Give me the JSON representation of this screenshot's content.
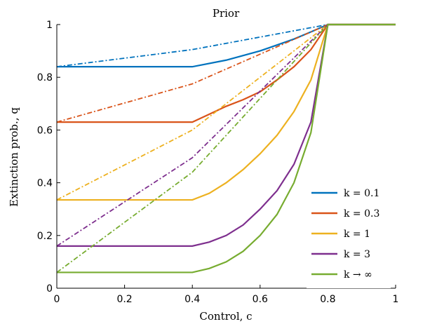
{
  "chart_data": {
    "type": "line",
    "title": "Prior",
    "xlabel": "Control, c",
    "ylabel": "Extinction prob., q",
    "xlim": [
      0,
      1
    ],
    "ylim": [
      0,
      1
    ],
    "xticks": [
      "0",
      "0.2",
      "0.4",
      "0.6",
      "0.8",
      "1"
    ],
    "yticks": [
      "0",
      "0.2",
      "0.4",
      "0.6",
      "0.8",
      "1"
    ],
    "grid": false,
    "legend_position": "bottom-right",
    "line_styles": {
      "solid": "solid",
      "dashdot": "dash-dot"
    },
    "series": [
      {
        "name": "k = 0.1",
        "color": "#0072BD",
        "solid": [
          [
            0,
            0.84
          ],
          [
            0.4,
            0.84
          ],
          [
            0.5,
            0.865
          ],
          [
            0.6,
            0.9
          ],
          [
            0.7,
            0.945
          ],
          [
            0.75,
            0.972
          ],
          [
            0.8,
            1
          ],
          [
            1,
            1
          ]
        ],
        "dashdot": [
          [
            0,
            0.84
          ],
          [
            0.4,
            0.905
          ],
          [
            0.8,
            1
          ],
          [
            1,
            1
          ]
        ]
      },
      {
        "name": "k = 0.3",
        "color": "#D95319",
        "solid": [
          [
            0,
            0.63
          ],
          [
            0.4,
            0.63
          ],
          [
            0.45,
            0.66
          ],
          [
            0.5,
            0.69
          ],
          [
            0.55,
            0.715
          ],
          [
            0.6,
            0.745
          ],
          [
            0.65,
            0.79
          ],
          [
            0.7,
            0.84
          ],
          [
            0.75,
            0.905
          ],
          [
            0.8,
            1
          ],
          [
            1,
            1
          ]
        ],
        "dashdot": [
          [
            0,
            0.63
          ],
          [
            0.4,
            0.775
          ],
          [
            0.8,
            1
          ],
          [
            1,
            1
          ]
        ]
      },
      {
        "name": "k = 1",
        "color": "#EDB120",
        "solid": [
          [
            0,
            0.335
          ],
          [
            0.4,
            0.335
          ],
          [
            0.45,
            0.36
          ],
          [
            0.5,
            0.4
          ],
          [
            0.55,
            0.45
          ],
          [
            0.6,
            0.51
          ],
          [
            0.65,
            0.58
          ],
          [
            0.7,
            0.67
          ],
          [
            0.75,
            0.79
          ],
          [
            0.8,
            1
          ],
          [
            1,
            1
          ]
        ],
        "dashdot": [
          [
            0,
            0.335
          ],
          [
            0.4,
            0.6
          ],
          [
            0.8,
            1
          ],
          [
            1,
            1
          ]
        ]
      },
      {
        "name": "k = 3",
        "color": "#7E2F8E",
        "solid": [
          [
            0,
            0.16
          ],
          [
            0.4,
            0.16
          ],
          [
            0.45,
            0.175
          ],
          [
            0.5,
            0.2
          ],
          [
            0.55,
            0.24
          ],
          [
            0.6,
            0.3
          ],
          [
            0.65,
            0.37
          ],
          [
            0.7,
            0.47
          ],
          [
            0.75,
            0.63
          ],
          [
            0.8,
            1
          ],
          [
            1,
            1
          ]
        ],
        "dashdot": [
          [
            0,
            0.16
          ],
          [
            0.4,
            0.495
          ],
          [
            0.8,
            1
          ],
          [
            1,
            1
          ]
        ]
      },
      {
        "name": "k → ∞",
        "color": "#77AC30",
        "solid": [
          [
            0,
            0.06
          ],
          [
            0.4,
            0.06
          ],
          [
            0.45,
            0.075
          ],
          [
            0.5,
            0.1
          ],
          [
            0.55,
            0.14
          ],
          [
            0.6,
            0.2
          ],
          [
            0.65,
            0.28
          ],
          [
            0.7,
            0.4
          ],
          [
            0.75,
            0.59
          ],
          [
            0.8,
            1
          ],
          [
            1,
            1
          ]
        ],
        "dashdot": [
          [
            0,
            0.06
          ],
          [
            0.4,
            0.44
          ],
          [
            0.8,
            1
          ],
          [
            1,
            1
          ]
        ]
      }
    ]
  }
}
